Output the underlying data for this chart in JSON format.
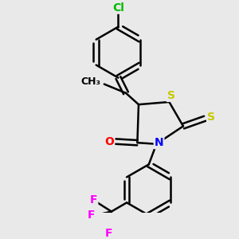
{
  "bg_color": "#e9e9e9",
  "bond_color": "#000000",
  "atom_colors": {
    "S": "#c8c800",
    "N": "#0000ff",
    "O": "#ff0000",
    "Cl": "#00bb00",
    "F": "#ff00ff",
    "C": "#000000"
  },
  "font_size": 10,
  "small_font_size": 9,
  "bond_width": 1.8,
  "figsize": [
    3.0,
    3.0
  ],
  "dpi": 100
}
